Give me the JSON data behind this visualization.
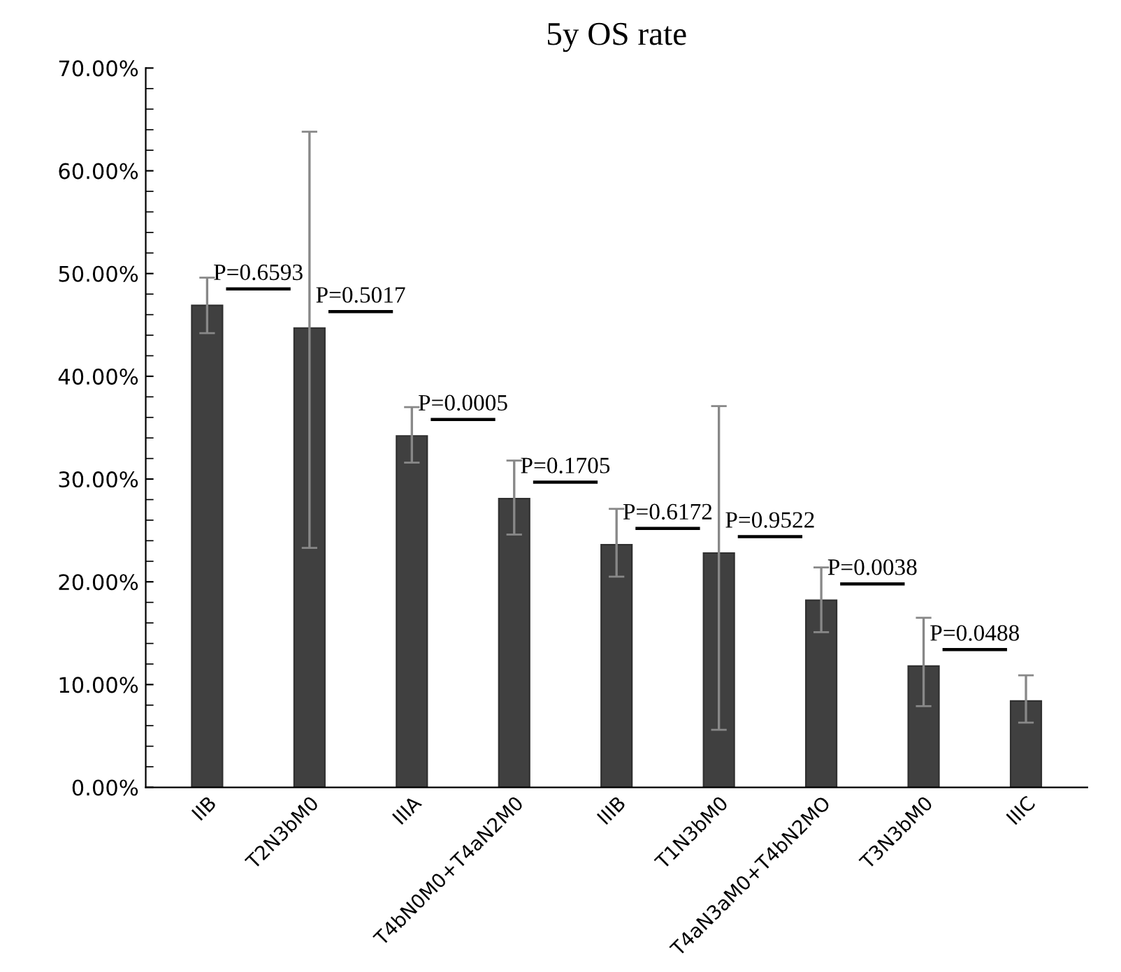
{
  "chart_data": {
    "type": "bar",
    "title": "5y OS rate",
    "categories": [
      "IIB",
      "T2N3bM0",
      "IIIA",
      "T4bN0M0+T4aN2M0",
      "IIIB",
      "T1N3bM0",
      "T4aN3aM0+T4bN2MO",
      "T3N3bM0",
      "IIIC"
    ],
    "values": [
      46.9,
      44.7,
      34.2,
      28.1,
      23.6,
      22.8,
      18.2,
      11.8,
      8.4
    ],
    "errors": [
      [
        44.2,
        49.6
      ],
      [
        23.3,
        63.8
      ],
      [
        31.6,
        37.0
      ],
      [
        24.6,
        31.8
      ],
      [
        20.5,
        27.1
      ],
      [
        5.6,
        37.1
      ],
      [
        15.1,
        21.4
      ],
      [
        7.9,
        16.5
      ],
      [
        6.3,
        10.9
      ]
    ],
    "color": "#404040",
    "ylim": [
      0,
      70
    ],
    "yticks": [
      {
        "value": 0,
        "label": "0.00%"
      },
      {
        "value": 10,
        "label": "10.00%"
      },
      {
        "value": 20,
        "label": "20.00%"
      },
      {
        "value": 30,
        "label": "30.00%"
      },
      {
        "value": 40,
        "label": "40.00%"
      },
      {
        "value": 50,
        "label": "50.00%"
      },
      {
        "value": 60,
        "label": "60.00%"
      },
      {
        "value": 70,
        "label": "70.00%"
      }
    ],
    "annotations": [
      "P=0.6593",
      "P=0.5017",
      "P=0.0005",
      "P=0.1705",
      "P=0.6172",
      "P=0.9522",
      "P=0.0038",
      "P=0.0488"
    ],
    "grid": false,
    "legend": false
  }
}
